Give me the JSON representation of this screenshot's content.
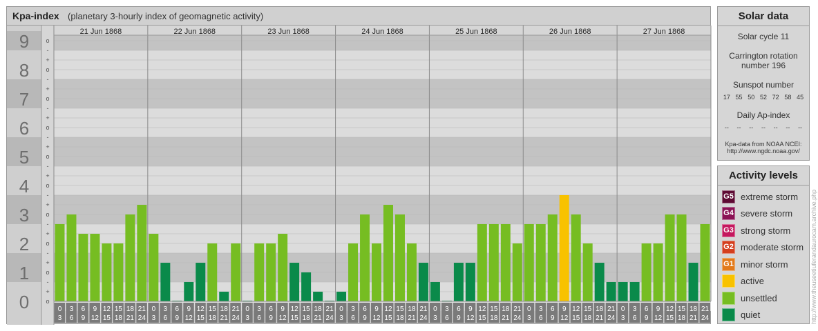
{
  "header": {
    "title": "Kpa-index",
    "subtitle": "(planetary 3-hourly index of geomagnetic activity)"
  },
  "chart_data": {
    "type": "bar",
    "ylim": [
      0,
      9.3333
    ],
    "y_ticks": [
      "0",
      "1",
      "2",
      "3",
      "4",
      "5",
      "6",
      "7",
      "8",
      "9"
    ],
    "sub_ticks": [
      "o",
      "+",
      "-"
    ],
    "days": [
      "21 Jun 1868",
      "22 Jun 1868",
      "23 Jun 1868",
      "24 Jun 1868",
      "25 Jun 1868",
      "26 Jun 1868",
      "27 Jun 1868"
    ],
    "hour_start": [
      "0",
      "3",
      "6",
      "9",
      "12",
      "15",
      "18",
      "21"
    ],
    "hour_end": [
      "3",
      "6",
      "9",
      "12",
      "15",
      "18",
      "21",
      "24"
    ],
    "values": [
      [
        2.667,
        3.0,
        2.333,
        2.333,
        2.0,
        2.0,
        3.0,
        3.333
      ],
      [
        2.333,
        1.333,
        0.0,
        0.667,
        1.333,
        2.0,
        0.333,
        2.0
      ],
      [
        0.0,
        2.0,
        2.0,
        2.333,
        1.333,
        1.0,
        0.333,
        0.0
      ],
      [
        0.333,
        2.0,
        3.0,
        2.0,
        3.333,
        3.0,
        2.0,
        1.333
      ],
      [
        0.667,
        0.0,
        1.333,
        1.333,
        2.667,
        2.667,
        2.667,
        2.0
      ],
      [
        2.667,
        2.667,
        3.0,
        3.667,
        3.0,
        2.0,
        1.333,
        0.667
      ],
      [
        0.667,
        0.667,
        2.0,
        2.0,
        3.0,
        3.0,
        1.333,
        2.667
      ]
    ],
    "colors": {
      "quiet": "#0a8a4a",
      "unsettled": "#76bd22",
      "active": "#f8c200",
      "minor": "#e27a1b",
      "moderate": "#d43f1e",
      "strong": "#c4185e",
      "severe": "#8b1355",
      "extreme": "#5e0a33"
    }
  },
  "solar": {
    "title": "Solar data",
    "cycle": "Solar cycle 11",
    "carrington_line1": "Carrington rotation",
    "carrington_line2": "number 196",
    "sunspot_title": "Sunspot number",
    "sunspot_values": [
      "17",
      "55",
      "50",
      "52",
      "72",
      "58",
      "45"
    ],
    "ap_title": "Daily Ap-index",
    "ap_values": [
      "--",
      "--",
      "--",
      "--",
      "--",
      "--",
      "--"
    ],
    "source_line1": "Kpa-data from NOAA NCEI:",
    "source_line2": "http://www.ngdc.noaa.gov/"
  },
  "levels": {
    "title": "Activity levels",
    "items": [
      {
        "code": "G5",
        "label": "extreme storm",
        "color": "#5e0a33"
      },
      {
        "code": "G4",
        "label": "severe storm",
        "color": "#8b1355"
      },
      {
        "code": "G3",
        "label": "strong storm",
        "color": "#c4185e"
      },
      {
        "code": "G2",
        "label": "moderate storm",
        "color": "#d43f1e"
      },
      {
        "code": "G1",
        "label": "minor storm",
        "color": "#e27a1b"
      },
      {
        "code": "",
        "label": "active",
        "color": "#f8c200"
      },
      {
        "code": "",
        "label": "unsettled",
        "color": "#76bd22"
      },
      {
        "code": "",
        "label": "quiet",
        "color": "#0a8a4a"
      }
    ]
  },
  "watermark": "http://www.theuseetiuferandaurocam.archive.php"
}
